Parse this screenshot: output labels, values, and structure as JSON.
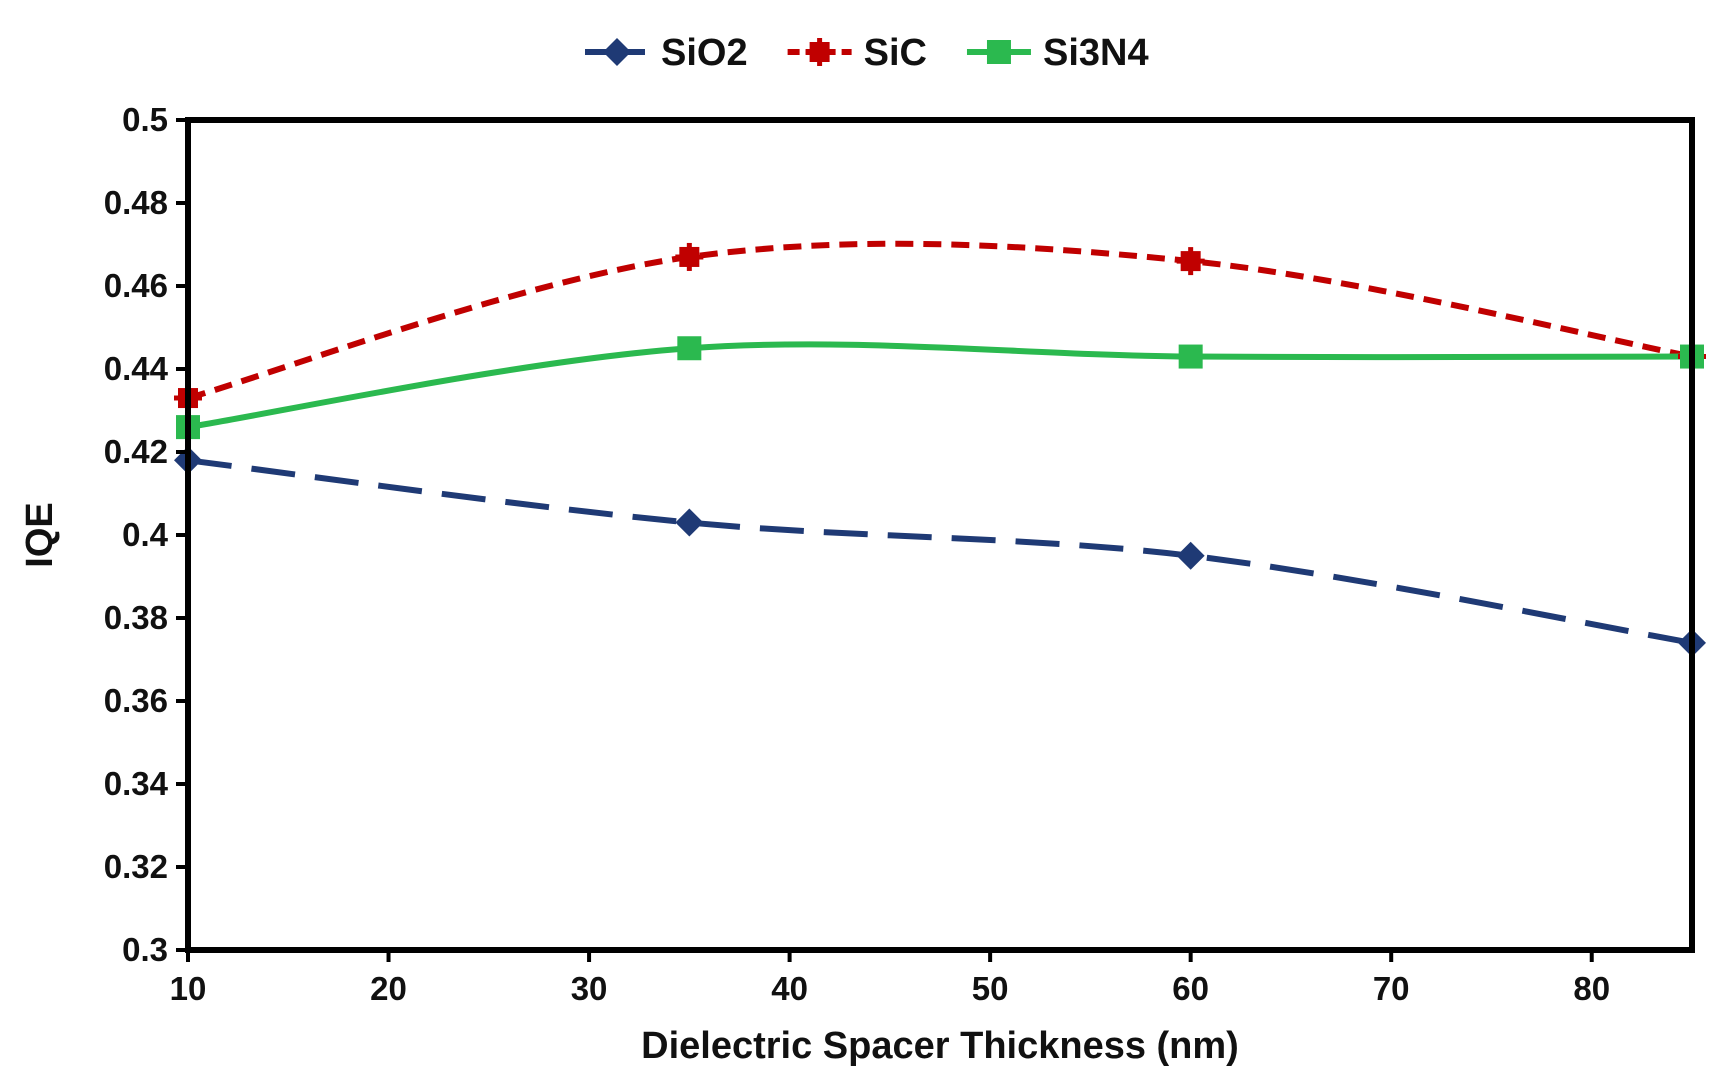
{
  "chart_data": {
    "type": "line",
    "title": "",
    "xlabel": "Dielectric Spacer Thickness (nm)",
    "ylabel": "IQE",
    "xlim": [
      10,
      85
    ],
    "ylim": [
      0.3,
      0.5
    ],
    "xticks": [
      10,
      20,
      30,
      40,
      50,
      60,
      70,
      80
    ],
    "yticks": [
      0.3,
      0.32,
      0.34,
      0.36,
      0.38,
      0.4,
      0.42,
      0.44,
      0.46,
      0.48,
      0.5
    ],
    "ytick_labels": [
      "0.3",
      "0.32",
      "0.34",
      "0.36",
      "0.38",
      "0.4",
      "0.42",
      "0.44",
      "0.46",
      "0.48",
      "0.5"
    ],
    "grid": false,
    "legend_position": "top-center",
    "x": [
      10,
      35,
      60,
      85
    ],
    "series": [
      {
        "name": "SiO2",
        "values": [
          0.418,
          0.403,
          0.395,
          0.374
        ],
        "color": "#1f3a75",
        "marker": "diamond",
        "line_style": "long-dash"
      },
      {
        "name": "SiC",
        "values": [
          0.433,
          0.467,
          0.466,
          0.443
        ],
        "color": "#c00000",
        "marker": "cross-square",
        "line_style": "short-dash"
      },
      {
        "name": "Si3N4",
        "values": [
          0.426,
          0.445,
          0.443,
          0.443
        ],
        "color": "#2bb94f",
        "marker": "square",
        "line_style": "solid"
      }
    ]
  }
}
